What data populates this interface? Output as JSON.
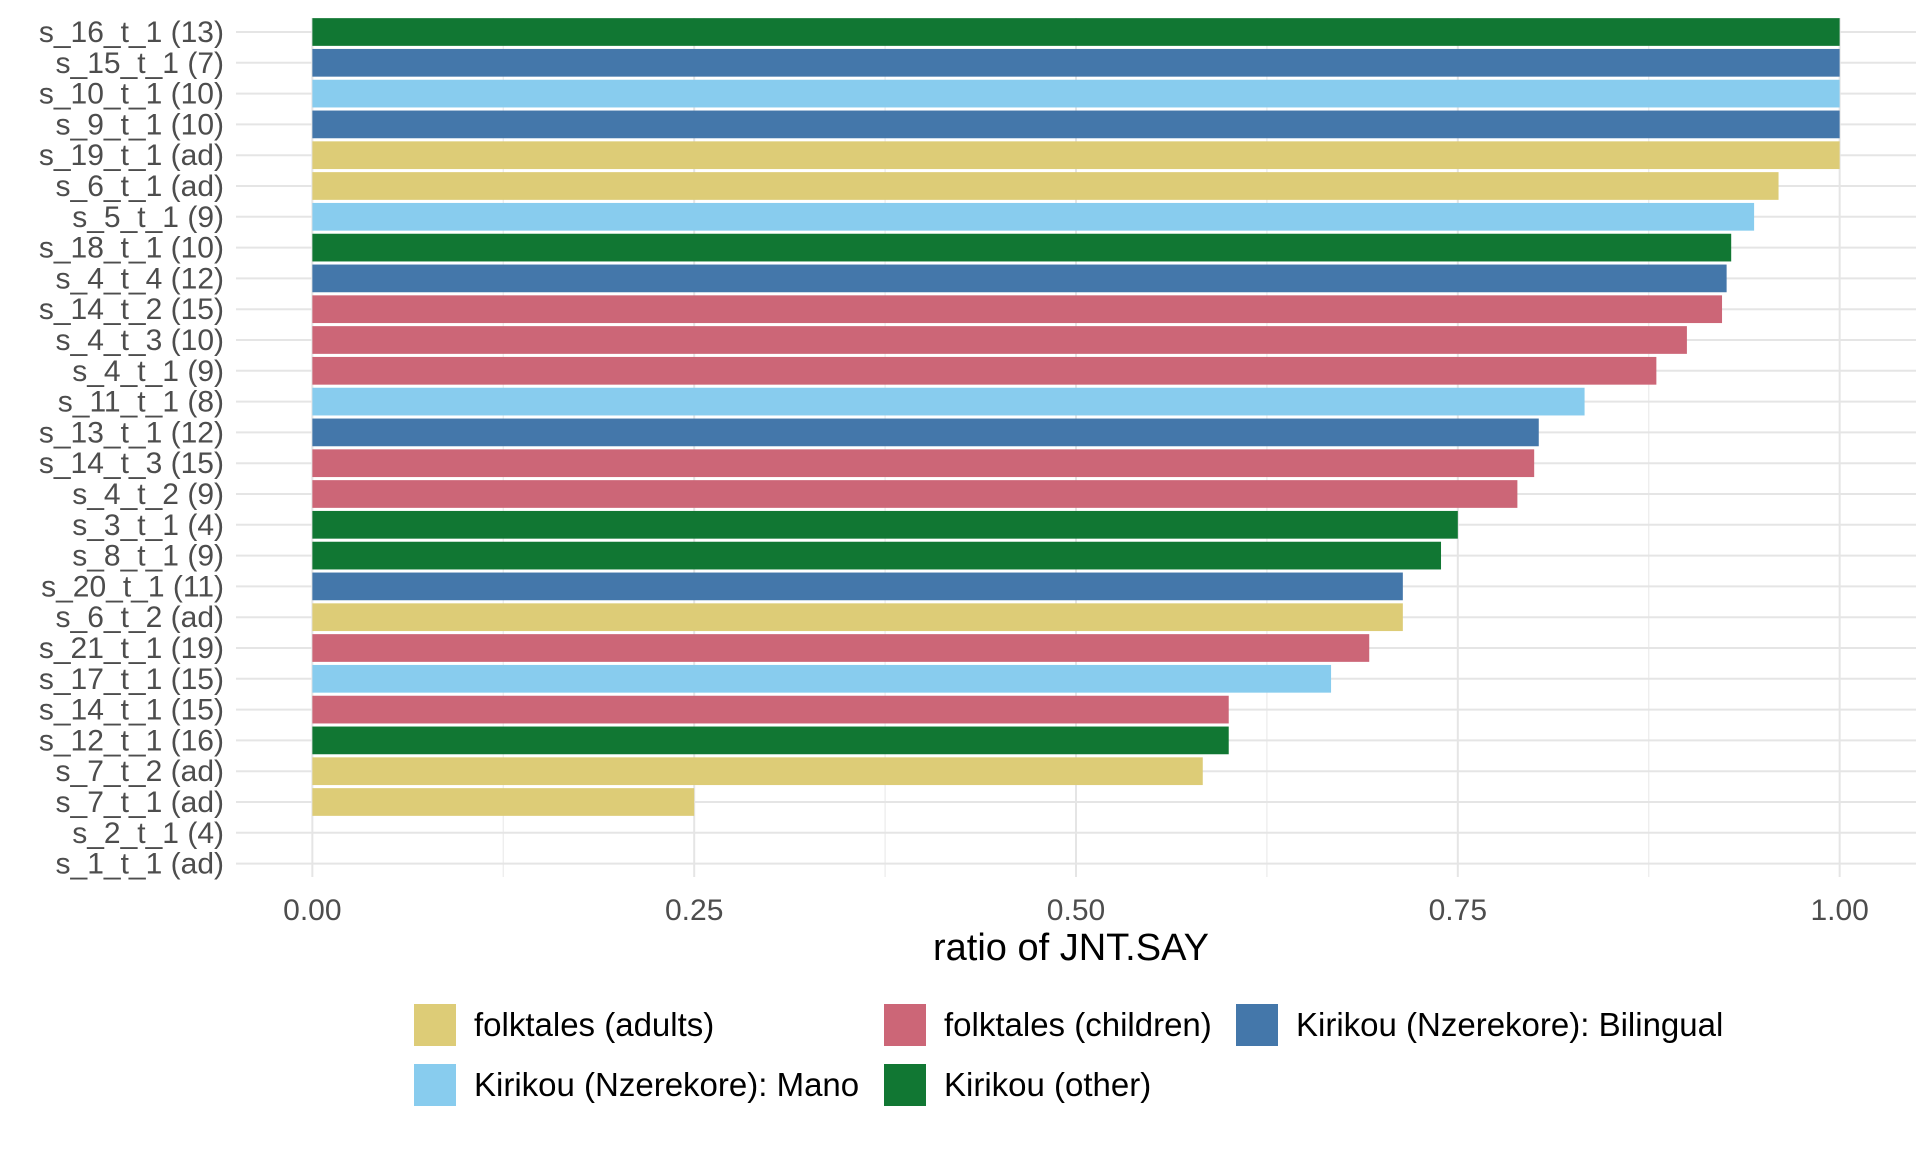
{
  "chart_data": {
    "type": "bar",
    "orientation": "horizontal",
    "xlabel": "ratio of JNT.SAY",
    "ylabel": "",
    "xlim": [
      -0.05,
      1.05
    ],
    "x_ticks": [
      0.0,
      0.25,
      0.5,
      0.75,
      1.0
    ],
    "x_tick_labels": [
      "0.00",
      "0.25",
      "0.50",
      "0.75",
      "1.00"
    ],
    "grid": true,
    "legend_position": "bottom",
    "groups": [
      {
        "name": "folktales (adults)",
        "color": "#DDCC77"
      },
      {
        "name": "folktales (children)",
        "color": "#CC6677"
      },
      {
        "name": "Kirikou (Nzerekore): Bilingual",
        "color": "#4477AA"
      },
      {
        "name": "Kirikou (Nzerekore): Mano",
        "color": "#88CCEE"
      },
      {
        "name": "Kirikou (other)",
        "color": "#117733"
      }
    ],
    "bars": [
      {
        "label": "s_16_t_1 (13)",
        "value": 1.0,
        "group": "Kirikou (other)"
      },
      {
        "label": "s_15_t_1 (7)",
        "value": 1.0,
        "group": "Kirikou (Nzerekore): Bilingual"
      },
      {
        "label": "s_10_t_1 (10)",
        "value": 1.0,
        "group": "Kirikou (Nzerekore): Mano"
      },
      {
        "label": "s_9_t_1 (10)",
        "value": 1.0,
        "group": "Kirikou (Nzerekore): Bilingual"
      },
      {
        "label": "s_19_t_1 (ad)",
        "value": 1.0,
        "group": "folktales (adults)"
      },
      {
        "label": "s_6_t_1 (ad)",
        "value": 0.96,
        "group": "folktales (adults)"
      },
      {
        "label": "s_5_t_1 (9)",
        "value": 0.944,
        "group": "Kirikou (Nzerekore): Mano"
      },
      {
        "label": "s_18_t_1 (10)",
        "value": 0.929,
        "group": "Kirikou (other)"
      },
      {
        "label": "s_4_t_4 (12)",
        "value": 0.926,
        "group": "Kirikou (Nzerekore): Bilingual"
      },
      {
        "label": "s_14_t_2 (15)",
        "value": 0.923,
        "group": "folktales (children)"
      },
      {
        "label": "s_4_t_3 (10)",
        "value": 0.9,
        "group": "folktales (children)"
      },
      {
        "label": "s_4_t_1 (9)",
        "value": 0.88,
        "group": "folktales (children)"
      },
      {
        "label": "s_11_t_1 (8)",
        "value": 0.833,
        "group": "Kirikou (Nzerekore): Mano"
      },
      {
        "label": "s_13_t_1 (12)",
        "value": 0.803,
        "group": "Kirikou (Nzerekore): Bilingual"
      },
      {
        "label": "s_14_t_3 (15)",
        "value": 0.8,
        "group": "folktales (children)"
      },
      {
        "label": "s_4_t_2 (9)",
        "value": 0.789,
        "group": "folktales (children)"
      },
      {
        "label": "s_3_t_1 (4)",
        "value": 0.75,
        "group": "Kirikou (other)"
      },
      {
        "label": "s_8_t_1 (9)",
        "value": 0.739,
        "group": "Kirikou (other)"
      },
      {
        "label": "s_20_t_1 (11)",
        "value": 0.714,
        "group": "Kirikou (Nzerekore): Bilingual"
      },
      {
        "label": "s_6_t_2 (ad)",
        "value": 0.714,
        "group": "folktales (adults)"
      },
      {
        "label": "s_21_t_1 (19)",
        "value": 0.692,
        "group": "folktales (children)"
      },
      {
        "label": "s_17_t_1 (15)",
        "value": 0.667,
        "group": "Kirikou (Nzerekore): Mano"
      },
      {
        "label": "s_14_t_1 (15)",
        "value": 0.6,
        "group": "folktales (children)"
      },
      {
        "label": "s_12_t_1 (16)",
        "value": 0.6,
        "group": "Kirikou (other)"
      },
      {
        "label": "s_7_t_2 (ad)",
        "value": 0.583,
        "group": "folktales (adults)"
      },
      {
        "label": "s_7_t_1 (ad)",
        "value": 0.25,
        "group": "folktales (adults)"
      },
      {
        "label": "s_2_t_1 (4)",
        "value": 0.0,
        "group": ""
      },
      {
        "label": "s_1_t_1 (ad)",
        "value": 0.0,
        "group": ""
      }
    ]
  }
}
